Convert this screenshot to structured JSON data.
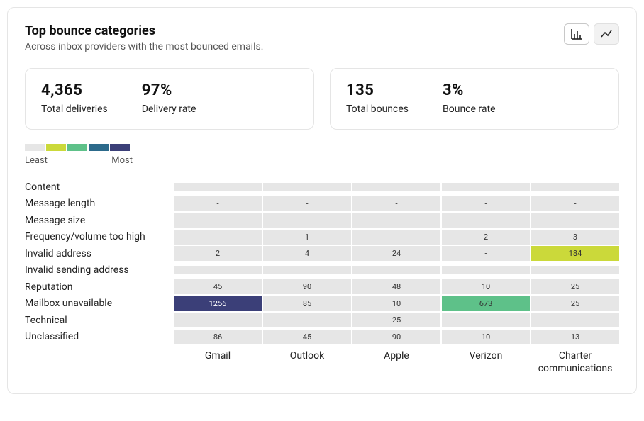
{
  "palette": {
    "scale": [
      "#e6e6e6",
      "#cbd93a",
      "#5ec189",
      "#2c6a8b",
      "#3b3f78"
    ],
    "cell_default_bg": "#e6e6e6",
    "cell_default_fg": "#333333",
    "dark_text": "#333333",
    "light_text": "#ffffff",
    "card_border": "#e5e5e5",
    "subtitle_color": "#555555"
  },
  "header": {
    "title": "Top bounce categories",
    "subtitle": "Across inbox providers with the most bounced emails."
  },
  "view_toggle": {
    "active": "bar"
  },
  "stats": {
    "left": [
      {
        "value": "4,365",
        "label": "Total deliveries"
      },
      {
        "value": "97%",
        "label": "Delivery rate"
      }
    ],
    "right": [
      {
        "value": "135",
        "label": "Total bounces"
      },
      {
        "value": "3%",
        "label": "Bounce rate"
      }
    ]
  },
  "legend": {
    "least": "Least",
    "most": "Most"
  },
  "heatmap": {
    "columns": [
      "Gmail",
      "Outlook",
      "Apple",
      "Verizon",
      "Charter communications"
    ],
    "rows": [
      {
        "label": "Content",
        "cells": [
          {
            "v": "",
            "lvl": "empty"
          },
          {
            "v": "",
            "lvl": "empty"
          },
          {
            "v": "",
            "lvl": "empty"
          },
          {
            "v": "",
            "lvl": "empty"
          },
          {
            "v": "",
            "lvl": "empty"
          }
        ]
      },
      {
        "label": "Message length",
        "cells": [
          {
            "v": "-"
          },
          {
            "v": "-"
          },
          {
            "v": "-"
          },
          {
            "v": "-"
          },
          {
            "v": "-"
          }
        ]
      },
      {
        "label": "Message size",
        "cells": [
          {
            "v": "-"
          },
          {
            "v": "-"
          },
          {
            "v": "-"
          },
          {
            "v": "-"
          },
          {
            "v": "-"
          }
        ]
      },
      {
        "label": "Frequency/volume too high",
        "cells": [
          {
            "v": "-"
          },
          {
            "v": "1"
          },
          {
            "v": "-"
          },
          {
            "v": "2"
          },
          {
            "v": "3"
          }
        ]
      },
      {
        "label": "Invalid address",
        "cells": [
          {
            "v": "2"
          },
          {
            "v": "4"
          },
          {
            "v": "24"
          },
          {
            "v": "-"
          },
          {
            "v": "184",
            "lvl": 1
          }
        ]
      },
      {
        "label": "Invalid sending address",
        "cells": [
          {
            "v": "",
            "lvl": "empty"
          },
          {
            "v": "",
            "lvl": "empty"
          },
          {
            "v": "",
            "lvl": "empty"
          },
          {
            "v": "",
            "lvl": "empty"
          },
          {
            "v": "",
            "lvl": "empty"
          }
        ]
      },
      {
        "label": "Reputation",
        "cells": [
          {
            "v": "45"
          },
          {
            "v": "90"
          },
          {
            "v": "48"
          },
          {
            "v": "10"
          },
          {
            "v": "25"
          }
        ]
      },
      {
        "label": "Mailbox unavailable",
        "cells": [
          {
            "v": "1256",
            "lvl": 4
          },
          {
            "v": "85"
          },
          {
            "v": "10"
          },
          {
            "v": "673",
            "lvl": 2
          },
          {
            "v": "25"
          }
        ]
      },
      {
        "label": "Technical",
        "cells": [
          {
            "v": "-"
          },
          {
            "v": "-"
          },
          {
            "v": "25"
          },
          {
            "v": "-"
          },
          {
            "v": "-"
          }
        ]
      },
      {
        "label": "Unclassified",
        "cells": [
          {
            "v": "86"
          },
          {
            "v": "45"
          },
          {
            "v": "90"
          },
          {
            "v": "10"
          },
          {
            "v": "13"
          }
        ]
      }
    ]
  }
}
